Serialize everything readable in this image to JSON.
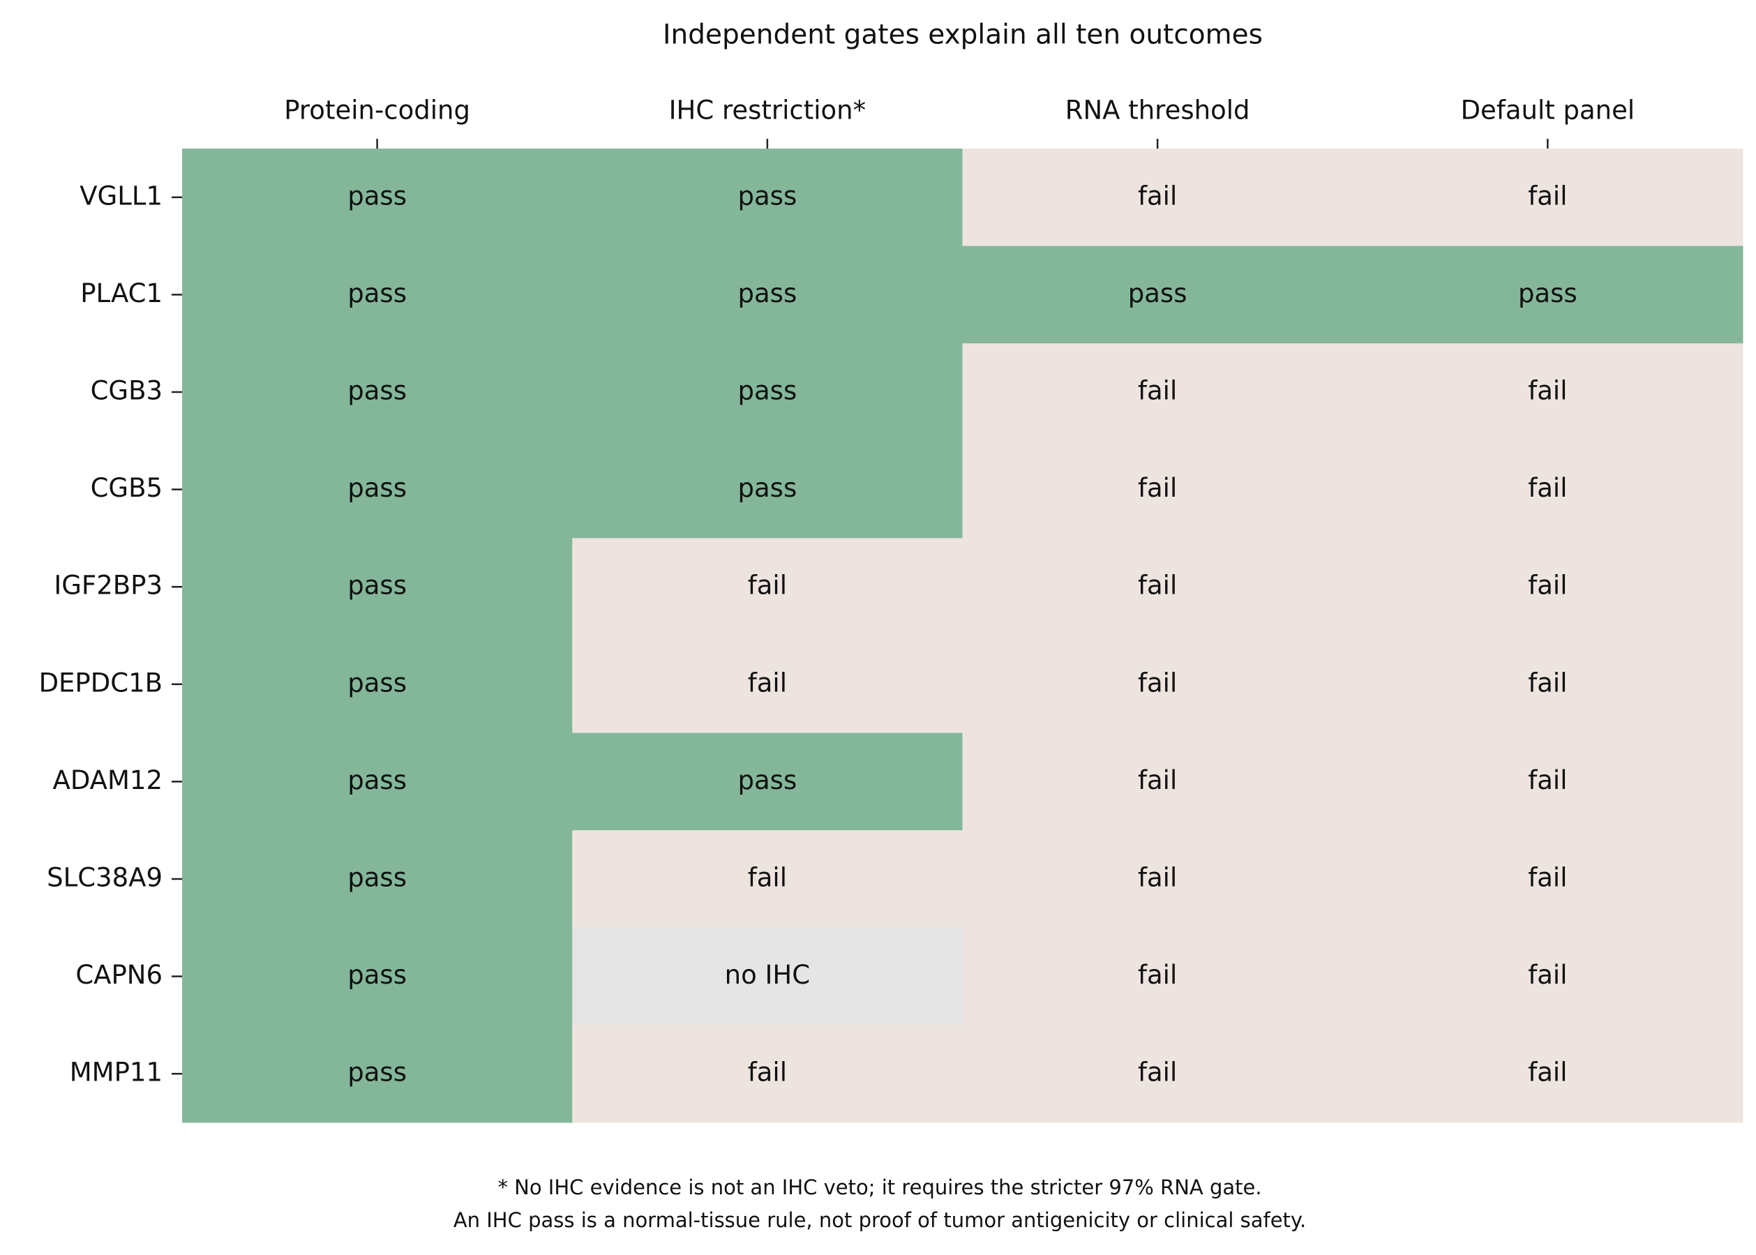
{
  "chart_data": {
    "type": "heatmap",
    "title": "Independent gates explain all ten outcomes",
    "columns": [
      "Protein-coding",
      "IHC restriction*",
      "RNA threshold",
      "Default panel"
    ],
    "rows": [
      "VGLL1",
      "PLAC1",
      "CGB3",
      "CGB5",
      "IGF2BP3",
      "DEPDC1B",
      "ADAM12",
      "SLC38A9",
      "CAPN6",
      "MMP11"
    ],
    "cells": [
      [
        "pass",
        "pass",
        "fail",
        "fail"
      ],
      [
        "pass",
        "pass",
        "pass",
        "pass"
      ],
      [
        "pass",
        "pass",
        "fail",
        "fail"
      ],
      [
        "pass",
        "pass",
        "fail",
        "fail"
      ],
      [
        "pass",
        "fail",
        "fail",
        "fail"
      ],
      [
        "pass",
        "fail",
        "fail",
        "fail"
      ],
      [
        "pass",
        "pass",
        "fail",
        "fail"
      ],
      [
        "pass",
        "fail",
        "fail",
        "fail"
      ],
      [
        "pass",
        "no IHC",
        "fail",
        "fail"
      ],
      [
        "pass",
        "fail",
        "fail",
        "fail"
      ]
    ],
    "colors": {
      "pass": "#84b79a",
      "fail": "#ede4df",
      "no IHC": "#e5e5e5"
    },
    "notes": [
      "* No IHC evidence is not an IHC veto; it requires the stricter 97% RNA gate.",
      "An IHC pass is a normal-tissue rule, not proof of tumor antigenicity or clinical safety."
    ]
  }
}
